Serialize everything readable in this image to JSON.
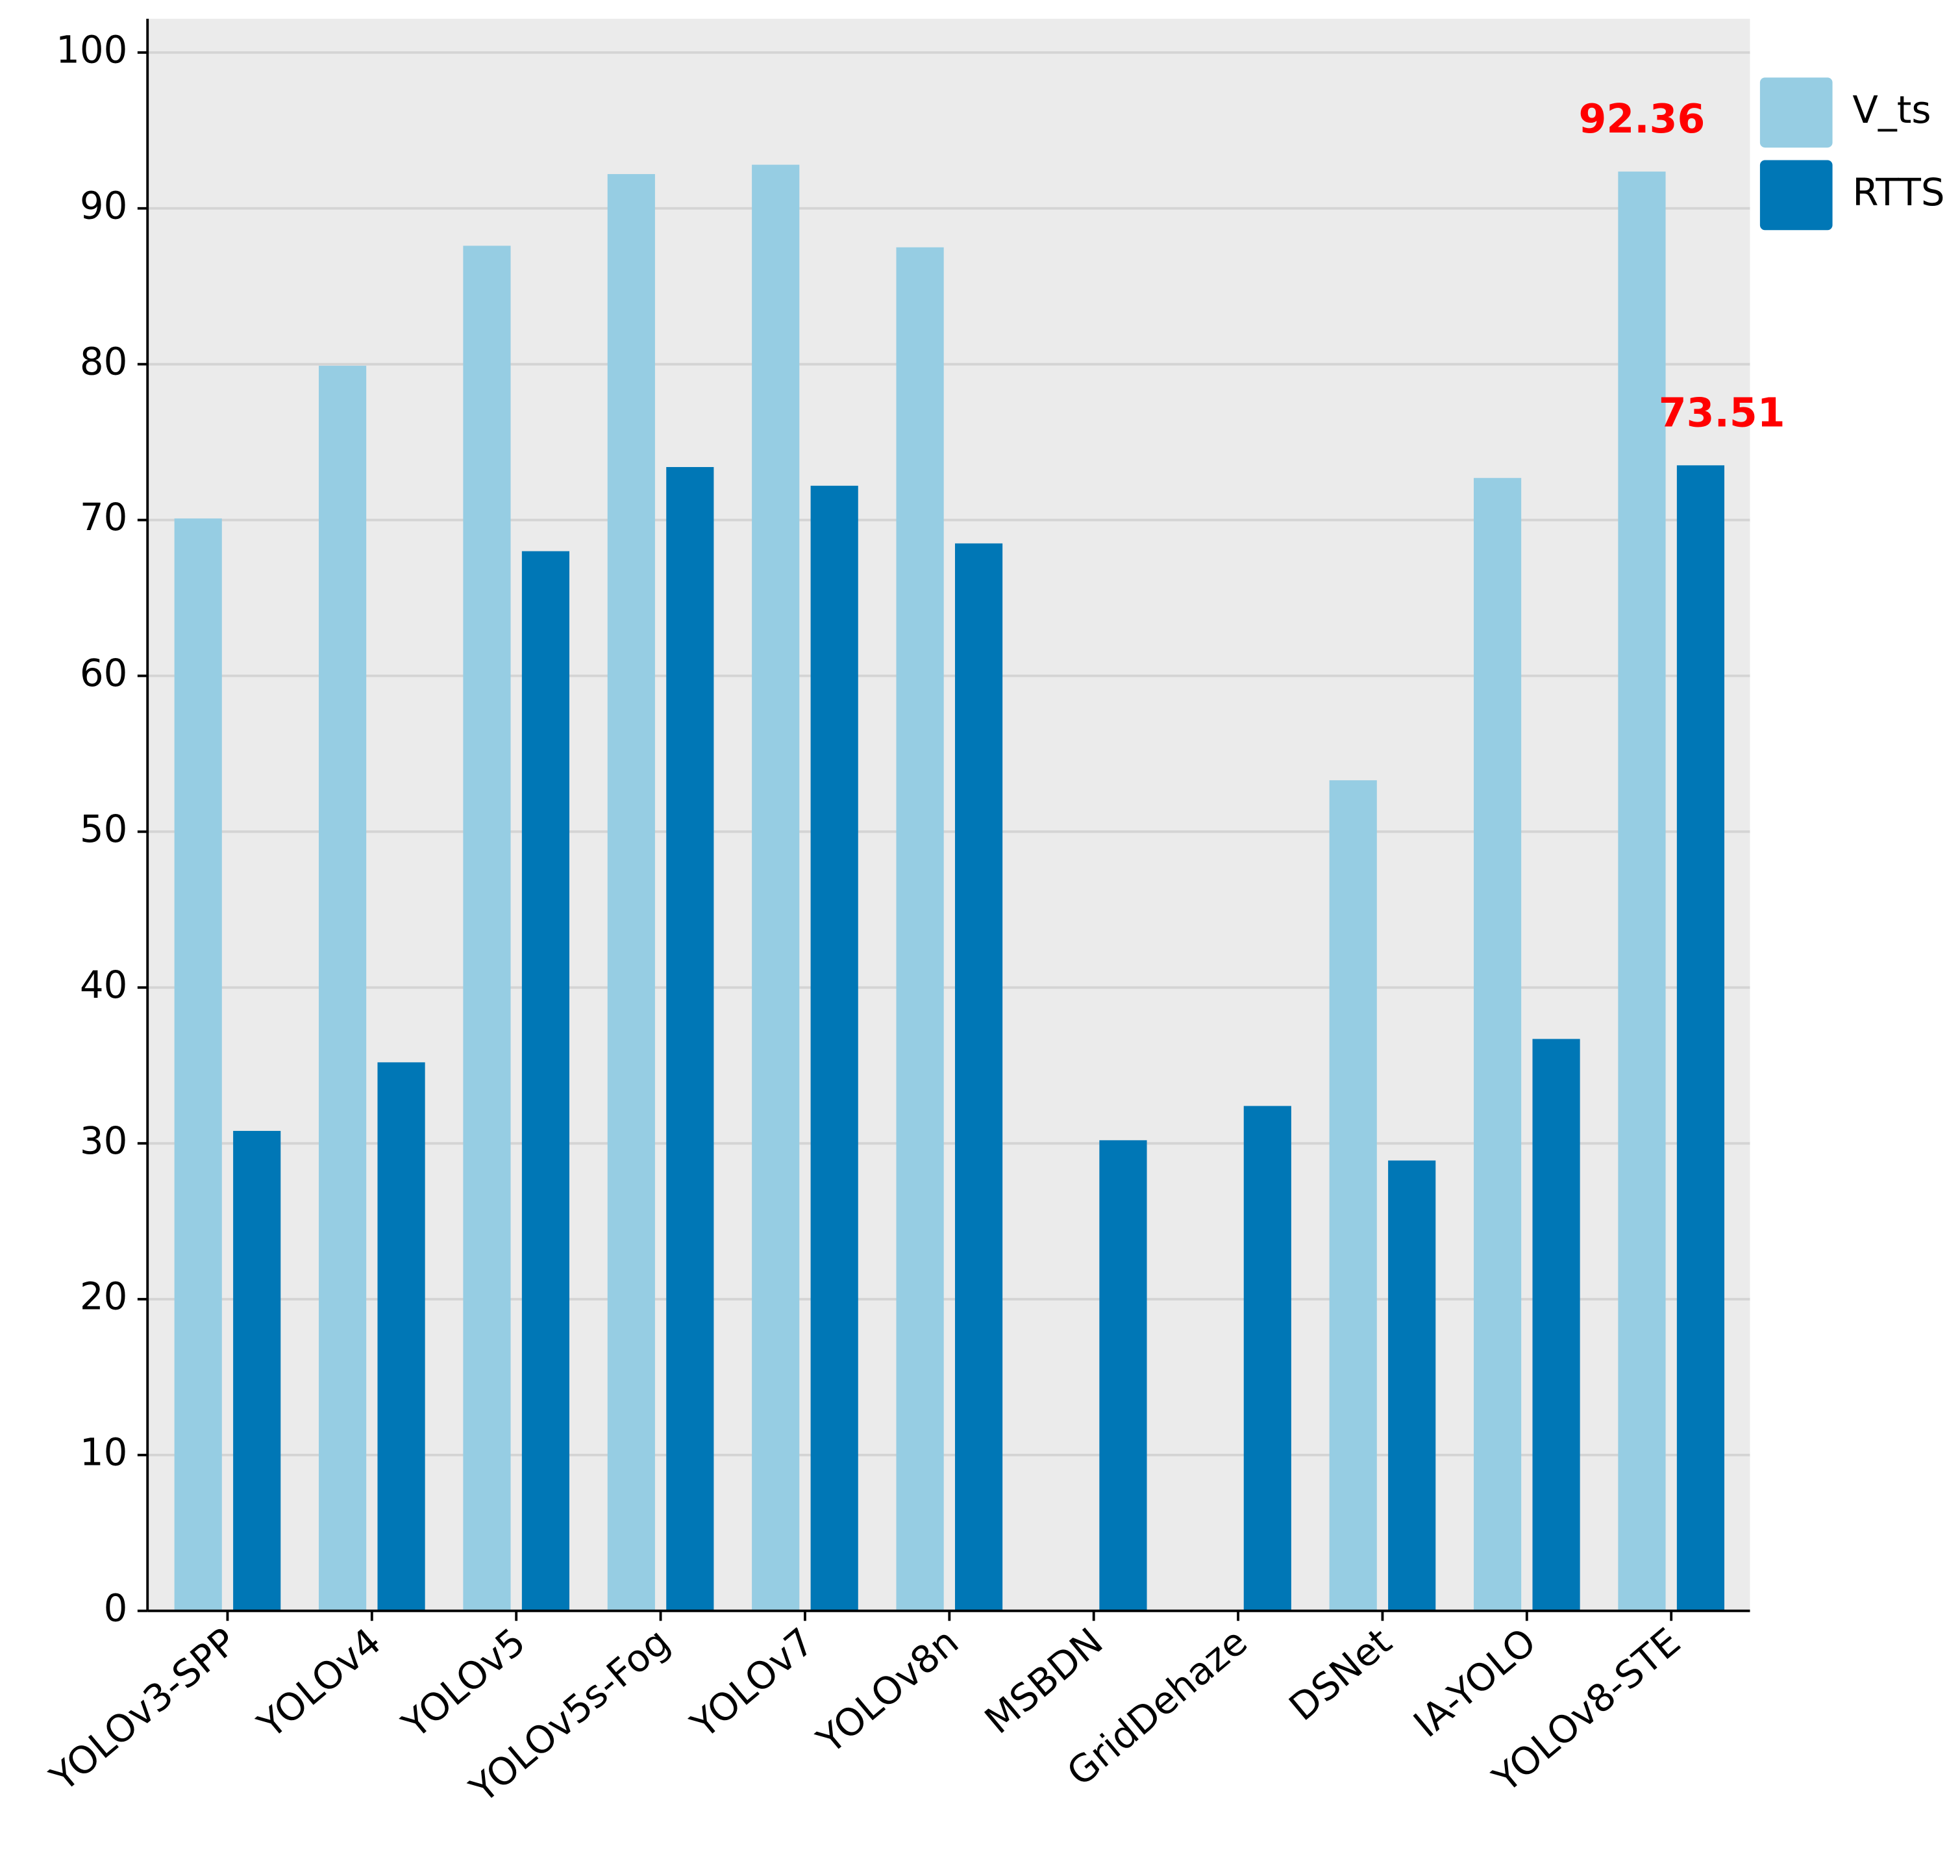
{
  "chart_data": {
    "type": "bar",
    "categories": [
      "YOLOv3-SPP",
      "YOLOv4",
      "YOLOv5",
      "YOLOv5s-Fog",
      "YOLOv7",
      "YOLOv8n",
      "MSBDN",
      "GridDehaze",
      "DSNet",
      "IA-YOLO",
      "YOLOv8-STE"
    ],
    "series": [
      {
        "name": "V_ts",
        "color": "#96cde3",
        "values": [
          70.1,
          79.9,
          87.6,
          92.2,
          92.8,
          87.5,
          null,
          null,
          53.3,
          72.7,
          92.36
        ],
        "value_labels": [
          null,
          null,
          null,
          null,
          null,
          null,
          null,
          null,
          null,
          null,
          "92.36"
        ]
      },
      {
        "name": "RTTS",
        "color": "#0077b6",
        "values": [
          30.8,
          35.2,
          68.0,
          73.4,
          72.2,
          68.5,
          30.2,
          32.4,
          28.9,
          36.7,
          73.51
        ],
        "value_labels": [
          null,
          null,
          null,
          null,
          null,
          null,
          null,
          null,
          null,
          null,
          "73.51"
        ]
      }
    ],
    "value_label_color": "#ff0000",
    "ylim": [
      0,
      100
    ],
    "yticks": [
      0,
      10,
      20,
      30,
      40,
      50,
      60,
      70,
      80,
      90,
      100
    ],
    "grid": true,
    "legend": "right"
  }
}
